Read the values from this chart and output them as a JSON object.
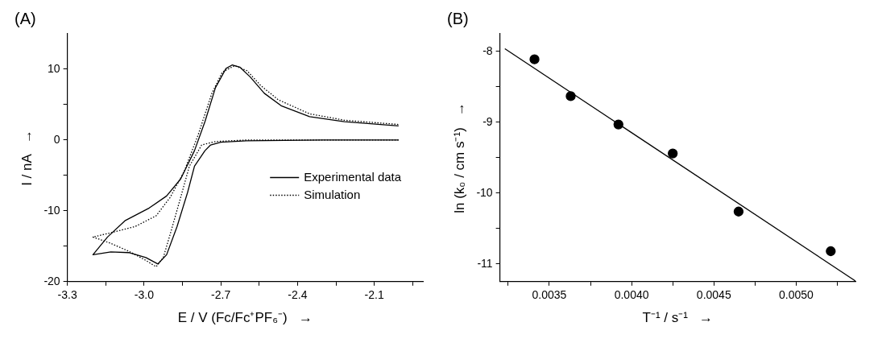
{
  "chart_data": [
    {
      "type": "line",
      "title": "(A)",
      "xlabel": "E / V (Fc/Fc⁺PF₆⁻)   →",
      "ylabel": "I / nA   →",
      "xlim": [
        -3.3,
        -1.91
      ],
      "xticks": [
        -3.3,
        {
          "value": -3.15,
          "label": null
        },
        {
          "value": -3.0,
          "label": "-3.0"
        },
        {
          "value": -2.85,
          "label": null
        },
        -2.7,
        {
          "value": -2.55,
          "label": null
        },
        -2.4,
        {
          "value": -2.25,
          "label": null
        },
        -2.1,
        {
          "value": -1.95,
          "label": null
        }
      ],
      "ylim": [
        -20,
        15
      ],
      "yticks": [
        -20,
        {
          "value": -15,
          "label": null
        },
        -10,
        {
          "value": -5,
          "label": null
        },
        0,
        {
          "value": 5,
          "label": null
        },
        10
      ],
      "grid": false,
      "legend": "right",
      "marker": "none",
      "series": [
        {
          "name": "Experimental data",
          "color": "#000000",
          "line_style": "solid",
          "x": [
            -2.005,
            -2.3,
            -2.6,
            -2.7,
            -2.74,
            -2.762,
            -2.803,
            -2.83,
            -2.871,
            -2.912,
            -2.946,
            -2.993,
            -3.06,
            -3.13,
            -3.2,
            -3.143,
            -3.075,
            -2.98,
            -2.912,
            -2.857,
            -2.803,
            -2.762,
            -2.721,
            -2.68,
            -2.656,
            -2.626,
            -2.585,
            -2.53,
            -2.462,
            -2.353,
            -2.217,
            -2.005
          ],
          "values": [
            0,
            0,
            -0.1,
            -0.3,
            -0.7,
            -1.5,
            -3.7,
            -7.4,
            -12.2,
            -16.2,
            -17.5,
            -16.6,
            -15.9,
            -15.8,
            -16.2,
            -13.7,
            -11.4,
            -9.6,
            -7.9,
            -5.5,
            -1.5,
            2.6,
            7.4,
            10.1,
            10.6,
            10.3,
            8.9,
            6.6,
            4.8,
            3.3,
            2.6,
            2.0
          ]
        },
        {
          "name": "Simulation",
          "color": "#000000",
          "line_style": "dotted",
          "x": [
            -2.005,
            -2.3,
            -2.6,
            -2.72,
            -2.775,
            -2.823,
            -2.857,
            -2.898,
            -2.925,
            -2.953,
            -2.993,
            -3.06,
            -3.13,
            -3.2,
            -3.13,
            -3.034,
            -2.953,
            -2.898,
            -2.843,
            -2.789,
            -2.735,
            -2.694,
            -2.646,
            -2.598,
            -2.544,
            -2.476,
            -2.353,
            -2.217,
            -2.005
          ],
          "values": [
            0,
            0,
            0,
            -0.2,
            -0.7,
            -3.7,
            -8.1,
            -13.3,
            -16.6,
            -17.9,
            -17.0,
            -15.7,
            -14.6,
            -13.7,
            -13.1,
            -12.2,
            -10.7,
            -8.1,
            -4.4,
            0.7,
            6.6,
            9.6,
            10.5,
            9.8,
            7.7,
            5.7,
            3.7,
            2.8,
            2.2
          ]
        }
      ]
    },
    {
      "type": "scatter",
      "title": "(B)",
      "xlabel": "T⁻¹ / s⁻¹   →",
      "ylabel": "ln (k₀ / cm s⁻¹)   →",
      "xlim": [
        0.0032,
        0.00536
      ],
      "xticks": [
        {
          "value": 0.00325,
          "label": null
        },
        0.0035,
        {
          "value": 0.00375,
          "label": null
        },
        {
          "value": 0.004,
          "label": "0.0040"
        },
        {
          "value": 0.00425,
          "label": null
        },
        0.0045,
        {
          "value": 0.00475,
          "label": null
        },
        {
          "value": 0.005,
          "label": "0.0050"
        },
        {
          "value": 0.00525,
          "label": null
        }
      ],
      "ylim": [
        -11.25,
        -7.75
      ],
      "yticks": [
        -11,
        {
          "value": -10.5,
          "label": null
        },
        -10,
        {
          "value": -9.5,
          "label": null
        },
        -9,
        {
          "value": -8.5,
          "label": null
        },
        -8
      ],
      "grid": false,
      "marker": "circle",
      "series": [
        {
          "type": "scatter",
          "color": "#000000",
          "x": [
            0.00341,
            0.00363,
            0.00392,
            0.00425,
            0.00465,
            0.00521
          ],
          "values": [
            -8.11,
            -8.63,
            -9.03,
            -9.44,
            -10.26,
            -10.82
          ]
        },
        {
          "type": "line",
          "color": "#000000",
          "marker": "none",
          "line_style": "solid",
          "x": [
            0.00323,
            0.00536
          ],
          "values": [
            -7.96,
            -11.24
          ]
        }
      ]
    }
  ]
}
